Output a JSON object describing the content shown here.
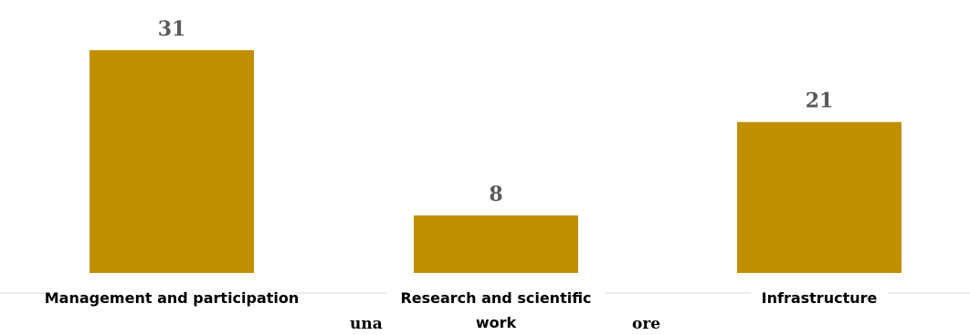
{
  "chart_data": {
    "type": "bar",
    "categories": [
      "Management and participation",
      "Research and scientific work",
      "Infrastructure"
    ],
    "category_lines": [
      [
        "Management and participation"
      ],
      [
        "Research and scientific",
        "work"
      ],
      [
        "Infrastructure"
      ]
    ],
    "values": [
      31,
      8,
      21
    ],
    "ylim": [
      0,
      31
    ],
    "grid": false,
    "legend": "none",
    "bar_color": "#BF8F00",
    "axis_color": "#D9D9D9",
    "partial_text": {
      "left": "una",
      "right": "ore"
    }
  }
}
